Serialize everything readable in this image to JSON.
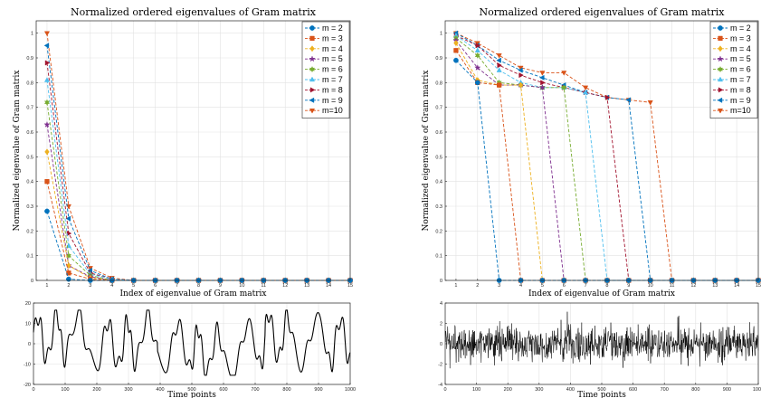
{
  "chart_data": [
    {
      "id": "eig-left",
      "type": "line",
      "title": "Normalized ordered eigenvalues of Gram matrix",
      "xlabel": "Index of eigenvalue of Gram matrix",
      "ylabel": "Normalized eigenvalue of Gram matrix",
      "xlim": [
        0.5,
        15
      ],
      "ylim": [
        0,
        1.05
      ],
      "x_ticks": [
        1,
        2,
        3,
        4,
        5,
        6,
        7,
        8,
        9,
        10,
        11,
        12,
        13,
        14,
        15
      ],
      "y_ticks": [
        0,
        0.1,
        0.2,
        0.3,
        0.4,
        0.5,
        0.6,
        0.7,
        0.8,
        0.9,
        1
      ],
      "y_tick_labels": [
        "0",
        "0.1",
        "0.2",
        "0.3",
        "0.4",
        "0.5",
        "0.6",
        "0.7",
        "0.8",
        "0.9",
        "1"
      ],
      "grid": true,
      "legend_position": "top-right",
      "x": [
        1,
        2,
        3,
        4,
        5,
        6,
        7,
        8,
        9,
        10,
        11,
        12,
        13,
        14,
        15
      ],
      "series": [
        {
          "name": "m = 2",
          "color": "#0072BD",
          "marker": "circle",
          "values": [
            0.28,
            0.005,
            0,
            0,
            0,
            0,
            0,
            0,
            0,
            0,
            0,
            0,
            0,
            0,
            0
          ]
        },
        {
          "name": "m = 3",
          "color": "#D95319",
          "marker": "square",
          "values": [
            0.4,
            0.03,
            0.005,
            0,
            0,
            0,
            0,
            0,
            0,
            0,
            0,
            0,
            0,
            0,
            0
          ]
        },
        {
          "name": "m = 4",
          "color": "#EDB120",
          "marker": "diamond",
          "values": [
            0.52,
            0.06,
            0.01,
            0,
            0,
            0,
            0,
            0,
            0,
            0,
            0,
            0,
            0,
            0,
            0
          ]
        },
        {
          "name": "m = 5",
          "color": "#7E2F8E",
          "marker": "star",
          "values": [
            0.63,
            0.06,
            0.015,
            0,
            0,
            0,
            0,
            0,
            0,
            0,
            0,
            0,
            0,
            0,
            0
          ]
        },
        {
          "name": "m = 6",
          "color": "#77AC30",
          "marker": "hexagram",
          "values": [
            0.72,
            0.1,
            0.02,
            0,
            0,
            0,
            0,
            0,
            0,
            0,
            0,
            0,
            0,
            0,
            0
          ]
        },
        {
          "name": "m = 7",
          "color": "#4DBEEE",
          "marker": "triangle-up",
          "values": [
            0.81,
            0.14,
            0.025,
            0.005,
            0,
            0,
            0,
            0,
            0,
            0,
            0,
            0,
            0,
            0,
            0
          ]
        },
        {
          "name": "m = 8",
          "color": "#A2142F",
          "marker": "triangle-right",
          "values": [
            0.88,
            0.19,
            0.03,
            0.005,
            0,
            0,
            0,
            0,
            0,
            0,
            0,
            0,
            0,
            0,
            0
          ]
        },
        {
          "name": "m = 9",
          "color": "#0072BD",
          "marker": "triangle-left",
          "values": [
            0.95,
            0.25,
            0.04,
            0.005,
            0,
            0,
            0,
            0,
            0,
            0,
            0,
            0,
            0,
            0,
            0
          ]
        },
        {
          "name": "m=10",
          "color": "#D95319",
          "marker": "triangle-down",
          "values": [
            1.0,
            0.3,
            0.05,
            0.01,
            0,
            0,
            0,
            0,
            0,
            0,
            0,
            0,
            0,
            0,
            0
          ]
        }
      ]
    },
    {
      "id": "eig-right",
      "type": "line",
      "title": "Normalized ordered eigenvalues of Gram matrix",
      "xlabel": "Index of eigenvalue of Gram matrix",
      "ylabel": "Normalized eigenvalue of Gram matrix",
      "xlim": [
        0.5,
        15
      ],
      "ylim": [
        0,
        1.05
      ],
      "x_ticks": [
        1,
        2,
        3,
        4,
        5,
        6,
        7,
        8,
        9,
        10,
        11,
        12,
        13,
        14,
        15
      ],
      "y_ticks": [
        0,
        0.1,
        0.2,
        0.3,
        0.4,
        0.5,
        0.6,
        0.7,
        0.8,
        0.9,
        1
      ],
      "y_tick_labels": [
        "0",
        "0.1",
        "0.2",
        "0.3",
        "0.4",
        "0.5",
        "0.6",
        "0.7",
        "0.8",
        "0.9",
        "1"
      ],
      "grid": true,
      "legend_position": "top-right",
      "x": [
        1,
        2,
        3,
        4,
        5,
        6,
        7,
        8,
        9,
        10,
        11,
        12,
        13,
        14,
        15
      ],
      "series": [
        {
          "name": "m = 2",
          "color": "#0072BD",
          "marker": "circle",
          "values": [
            0.89,
            0.8,
            0,
            0,
            0,
            0,
            0,
            0,
            0,
            0,
            0,
            0,
            0,
            0,
            0
          ]
        },
        {
          "name": "m = 3",
          "color": "#D95319",
          "marker": "square",
          "values": [
            0.93,
            0.8,
            0.79,
            0,
            0,
            0,
            0,
            0,
            0,
            0,
            0,
            0,
            0,
            0,
            0
          ]
        },
        {
          "name": "m = 4",
          "color": "#EDB120",
          "marker": "diamond",
          "values": [
            0.96,
            0.81,
            0.79,
            0.79,
            0,
            0,
            0,
            0,
            0,
            0,
            0,
            0,
            0,
            0,
            0
          ]
        },
        {
          "name": "m = 5",
          "color": "#7E2F8E",
          "marker": "star",
          "values": [
            0.97,
            0.86,
            0.79,
            0.79,
            0.78,
            0,
            0,
            0,
            0,
            0,
            0,
            0,
            0,
            0,
            0
          ]
        },
        {
          "name": "m = 6",
          "color": "#77AC30",
          "marker": "hexagram",
          "values": [
            0.98,
            0.91,
            0.8,
            0.79,
            0.78,
            0.78,
            0,
            0,
            0,
            0,
            0,
            0,
            0,
            0,
            0
          ]
        },
        {
          "name": "m = 7",
          "color": "#4DBEEE",
          "marker": "triangle-up",
          "values": [
            0.99,
            0.93,
            0.85,
            0.8,
            0.78,
            0.78,
            0.76,
            0,
            0,
            0,
            0,
            0,
            0,
            0,
            0
          ]
        },
        {
          "name": "m = 8",
          "color": "#A2142F",
          "marker": "triangle-right",
          "values": [
            0.99,
            0.95,
            0.87,
            0.83,
            0.8,
            0.78,
            0.76,
            0.74,
            0,
            0,
            0,
            0,
            0,
            0,
            0
          ]
        },
        {
          "name": "m = 9",
          "color": "#0072BD",
          "marker": "triangle-left",
          "values": [
            1.0,
            0.95,
            0.89,
            0.85,
            0.82,
            0.79,
            0.76,
            0.74,
            0.73,
            0,
            0,
            0,
            0,
            0,
            0
          ]
        },
        {
          "name": "m=10",
          "color": "#D95319",
          "marker": "triangle-down",
          "values": [
            1.0,
            0.96,
            0.91,
            0.86,
            0.84,
            0.84,
            0.78,
            0.74,
            0.73,
            0.72,
            0,
            0,
            0,
            0,
            0
          ]
        }
      ]
    },
    {
      "id": "ts-left",
      "type": "line",
      "title": "",
      "xlabel": "Time points",
      "ylabel": "",
      "xlim": [
        0,
        1000
      ],
      "ylim": [
        -20,
        20
      ],
      "x_ticks": [
        0,
        100,
        200,
        300,
        400,
        500,
        600,
        700,
        800,
        900,
        1000
      ],
      "y_ticks": [
        -20,
        -10,
        0,
        10,
        20
      ],
      "y_tick_labels": [
        "-20",
        "-10",
        "0",
        "10",
        "20"
      ],
      "grid": true,
      "description_of_signal": "chaotic oscillation between about -16 and 16",
      "series": [
        {
          "name": "",
          "color": "#000000",
          "n_points": 1000,
          "amplitude": 16,
          "kind": "chaotic"
        }
      ]
    },
    {
      "id": "ts-right",
      "type": "line",
      "title": "",
      "xlabel": "Time points",
      "ylabel": "",
      "xlim": [
        0,
        1000
      ],
      "ylim": [
        -4,
        4
      ],
      "x_ticks": [
        0,
        100,
        200,
        300,
        400,
        500,
        600,
        700,
        800,
        900,
        1000
      ],
      "y_ticks": [
        -4,
        -2,
        0,
        2,
        4
      ],
      "y_tick_labels": [
        "-4",
        "-2",
        "0",
        "2",
        "4"
      ],
      "grid": true,
      "series": [
        {
          "name": "",
          "color": "#000000",
          "n_points": 1000,
          "std": 0.9,
          "kind": "noise"
        }
      ]
    }
  ]
}
